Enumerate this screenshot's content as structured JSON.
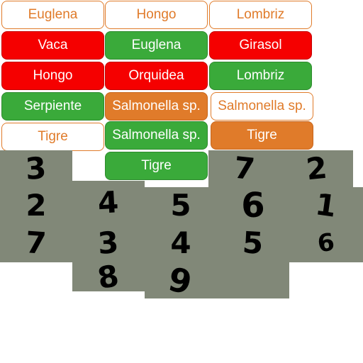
{
  "buttons": [
    {
      "label": "Euglena",
      "style": "outline"
    },
    {
      "label": "Hongo",
      "style": "outline"
    },
    {
      "label": "Lombriz",
      "style": "outline"
    },
    {
      "label": "Vaca",
      "style": "red"
    },
    {
      "label": "Euglena",
      "style": "green"
    },
    {
      "label": "Girasol",
      "style": "red"
    },
    {
      "label": "Hongo",
      "style": "red"
    },
    {
      "label": "Orquidea",
      "style": "red"
    },
    {
      "label": "Lombriz",
      "style": "green"
    },
    {
      "label": "Serpiente",
      "style": "green"
    },
    {
      "label": "Salmonella sp.",
      "style": "orange"
    },
    {
      "label": "Salmonella sp.",
      "style": "outline"
    },
    {
      "label": "Tigre",
      "style": "outline"
    },
    {
      "label": "Salmonella sp.",
      "style": "green"
    },
    {
      "label": "Tigre",
      "style": "orange"
    },
    {
      "label": "Tigre",
      "style": "green"
    }
  ],
  "digit_tiles": [
    {
      "digit": "3"
    },
    {
      "digit": "7"
    },
    {
      "digit": "2"
    },
    {
      "digit": "2"
    },
    {
      "digit": "4"
    },
    {
      "digit": "5"
    },
    {
      "digit": "6"
    },
    {
      "digit": "1"
    },
    {
      "digit": "7"
    },
    {
      "digit": "3"
    },
    {
      "digit": "4"
    },
    {
      "digit": "5"
    },
    {
      "digit": "6"
    },
    {
      "digit": "8"
    },
    {
      "digit": "9"
    }
  ],
  "colors": {
    "orange": "#e07b2a",
    "red": "#f50000",
    "green": "#3aaa3a",
    "tile_gray": "#818878"
  }
}
